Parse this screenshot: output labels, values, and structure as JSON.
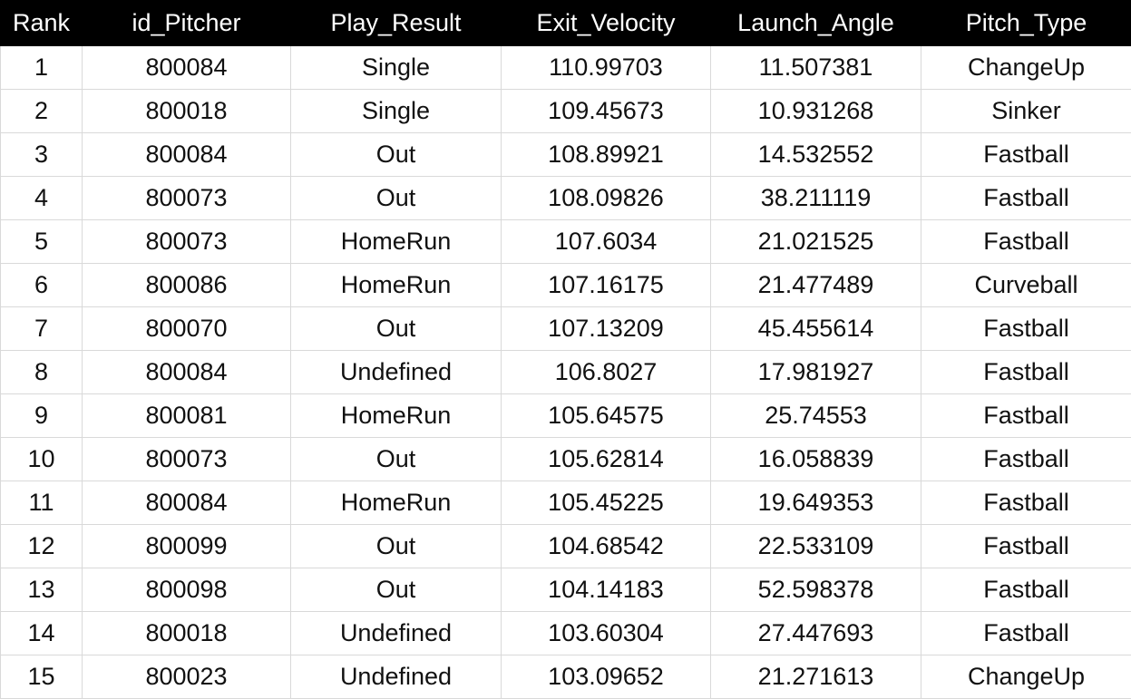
{
  "table": {
    "headers": [
      "Rank",
      "id_Pitcher",
      "Play_Result",
      "Exit_Velocity",
      "Launch_Angle",
      "Pitch_Type"
    ],
    "rows": [
      [
        "1",
        "800084",
        "Single",
        "110.99703",
        "11.507381",
        "ChangeUp"
      ],
      [
        "2",
        "800018",
        "Single",
        "109.45673",
        "10.931268",
        "Sinker"
      ],
      [
        "3",
        "800084",
        "Out",
        "108.89921",
        "14.532552",
        "Fastball"
      ],
      [
        "4",
        "800073",
        "Out",
        "108.09826",
        "38.211119",
        "Fastball"
      ],
      [
        "5",
        "800073",
        "HomeRun",
        "107.6034",
        "21.021525",
        "Fastball"
      ],
      [
        "6",
        "800086",
        "HomeRun",
        "107.16175",
        "21.477489",
        "Curveball"
      ],
      [
        "7",
        "800070",
        "Out",
        "107.13209",
        "45.455614",
        "Fastball"
      ],
      [
        "8",
        "800084",
        "Undefined",
        "106.8027",
        "17.981927",
        "Fastball"
      ],
      [
        "9",
        "800081",
        "HomeRun",
        "105.64575",
        "25.74553",
        "Fastball"
      ],
      [
        "10",
        "800073",
        "Out",
        "105.62814",
        "16.058839",
        "Fastball"
      ],
      [
        "11",
        "800084",
        "HomeRun",
        "105.45225",
        "19.649353",
        "Fastball"
      ],
      [
        "12",
        "800099",
        "Out",
        "104.68542",
        "22.533109",
        "Fastball"
      ],
      [
        "13",
        "800098",
        "Out",
        "104.14183",
        "52.598378",
        "Fastball"
      ],
      [
        "14",
        "800018",
        "Undefined",
        "103.60304",
        "27.447693",
        "Fastball"
      ],
      [
        "15",
        "800023",
        "Undefined",
        "103.09652",
        "21.271613",
        "ChangeUp"
      ]
    ]
  },
  "colors": {
    "header_bg": "#000000",
    "header_text": "#ffffff",
    "grid_line": "#d9d9d9",
    "cell_text": "#111111"
  }
}
